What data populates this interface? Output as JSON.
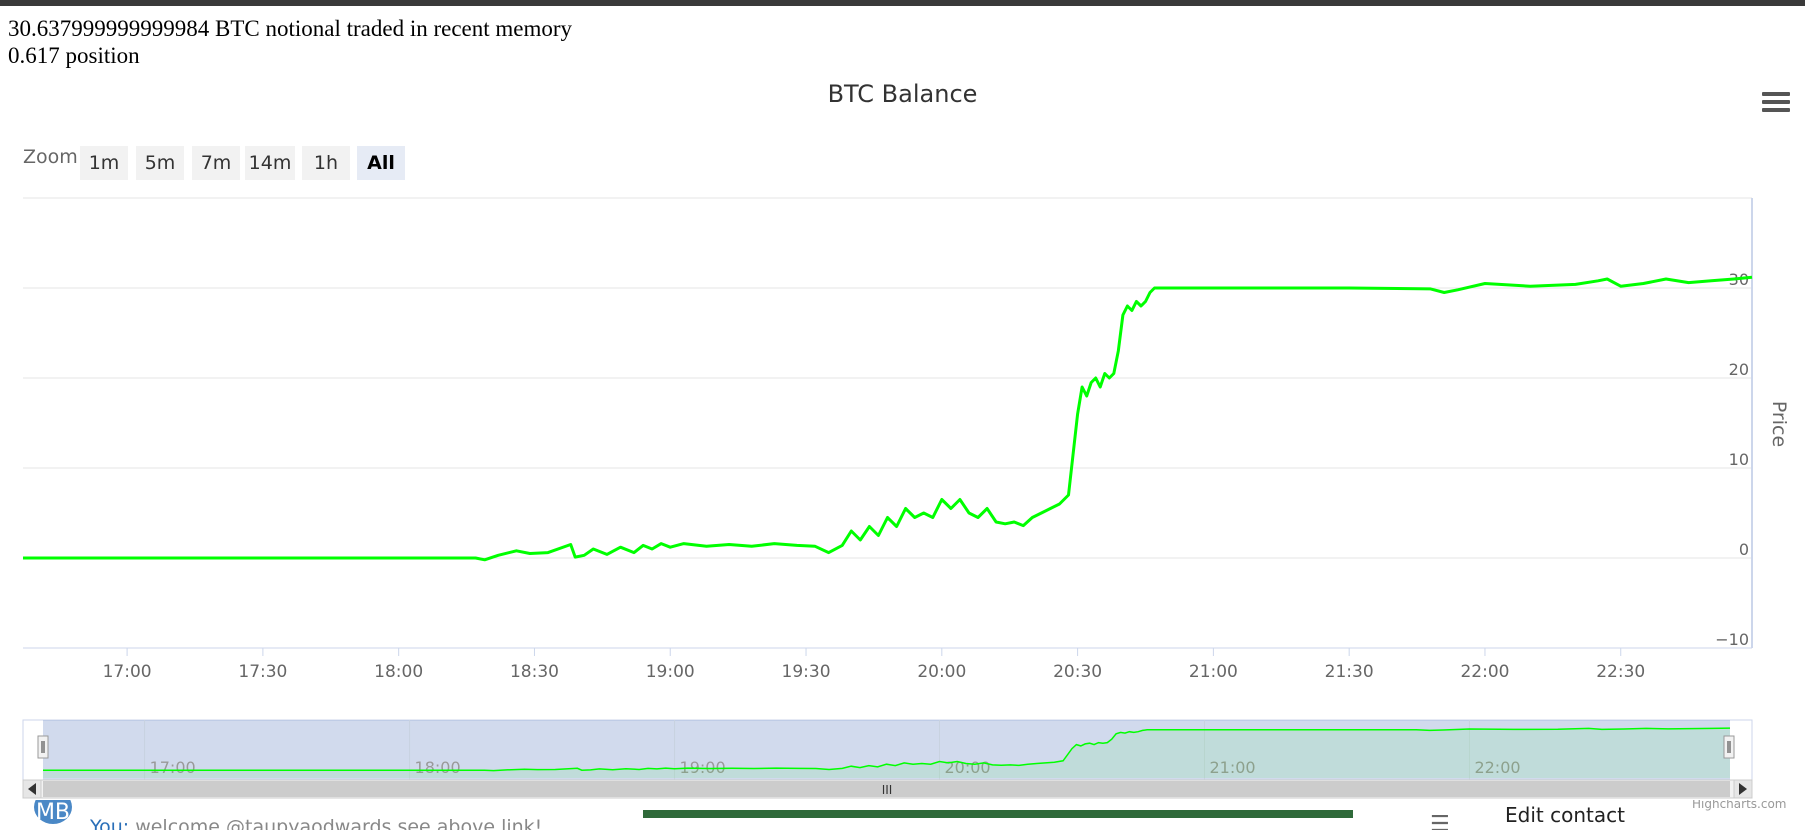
{
  "header": {
    "line1": "30.637999999999984 BTC notional traded in recent memory",
    "line2": "0.617 position"
  },
  "zoom": {
    "label": "Zoom",
    "buttons": [
      "1m",
      "5m",
      "7m",
      "14m",
      "1h",
      "All"
    ],
    "active": "All"
  },
  "chart_data": {
    "type": "line",
    "title": "BTC Balance",
    "ylabel": "Price",
    "xlabel": "",
    "ylim": [
      -10,
      40
    ],
    "xlim": [
      "16:37",
      "22:59"
    ],
    "x_ticks": [
      "17:00",
      "17:30",
      "18:00",
      "18:30",
      "19:00",
      "19:30",
      "20:00",
      "20:30",
      "21:00",
      "21:30",
      "22:00",
      "22:30"
    ],
    "y_ticks": [
      -10,
      0,
      10,
      20,
      30
    ],
    "navigator_ticks": [
      "17:00",
      "18:00",
      "19:00",
      "20:00",
      "21:00",
      "22:00"
    ],
    "grid": true,
    "color": "#00ff00",
    "series": [
      {
        "x": [
          "16:37",
          "18:00",
          "18:17",
          "18:19",
          "18:22",
          "18:26",
          "18:29",
          "18:33",
          "18:38",
          "18:39",
          "18:41",
          "18:43",
          "18:46",
          "18:49",
          "18:52",
          "18:54",
          "18:56",
          "18:58",
          "19:00",
          "19:03",
          "19:08",
          "19:13",
          "19:18",
          "19:23",
          "19:28",
          "19:32",
          "19:35",
          "19:38",
          "19:40",
          "19:42",
          "19:44",
          "19:46",
          "19:48",
          "19:50",
          "19:52",
          "19:54",
          "19:56",
          "19:58",
          "20:00",
          "20:02",
          "20:04",
          "20:06",
          "20:08",
          "20:10",
          "20:12",
          "20:14",
          "20:16",
          "20:18",
          "20:20",
          "20:22",
          "20:24",
          "20:26",
          "20:28",
          "20:30",
          "20:31",
          "20:32",
          "20:33",
          "20:34",
          "20:35",
          "20:36",
          "20:37",
          "20:38",
          "20:39",
          "20:40",
          "20:41",
          "20:42",
          "20:43",
          "20:44",
          "20:45",
          "20:46",
          "20:47",
          "20:48",
          "20:49",
          "20:50",
          "20:52",
          "20:55",
          "21:10",
          "21:30",
          "21:48",
          "21:51",
          "21:54",
          "22:00",
          "22:10",
          "22:20",
          "22:25",
          "22:27",
          "22:30",
          "22:35",
          "22:40",
          "22:45",
          "22:50",
          "22:55",
          "22:59"
        ],
        "values": [
          0,
          0,
          0,
          -0.2,
          0.3,
          0.8,
          0.5,
          0.6,
          1.5,
          0.1,
          0.3,
          1.0,
          0.4,
          1.2,
          0.6,
          1.4,
          1.0,
          1.6,
          1.2,
          1.6,
          1.3,
          1.5,
          1.3,
          1.6,
          1.4,
          1.3,
          0.6,
          1.4,
          3.0,
          2.0,
          3.5,
          2.5,
          4.5,
          3.5,
          5.5,
          4.5,
          5.0,
          4.5,
          6.5,
          5.5,
          6.5,
          5.0,
          4.5,
          5.5,
          4.0,
          3.8,
          4.0,
          3.6,
          4.5,
          5.0,
          5.5,
          6.0,
          7.0,
          16.0,
          19.0,
          18.0,
          19.5,
          20.0,
          19.0,
          20.5,
          20.0,
          20.5,
          23.0,
          27.0,
          28.0,
          27.5,
          28.5,
          28.0,
          28.5,
          29.5,
          30.0,
          30.0,
          30.0,
          30.0,
          30.0,
          30.0,
          30.0,
          30.0,
          29.9,
          29.5,
          29.8,
          30.5,
          30.2,
          30.4,
          30.8,
          31.0,
          30.2,
          30.5,
          31.0,
          30.6,
          30.8,
          31.0,
          31.2
        ]
      }
    ]
  },
  "navigator": {
    "scroll_grip": "III"
  },
  "footer": {
    "avatar_text": "MB",
    "message_prefix": "You:",
    "message_text": "welcome @taupyaodwards see above link!",
    "edit_contact": "Edit contact",
    "credits": "Highcharts.com"
  }
}
